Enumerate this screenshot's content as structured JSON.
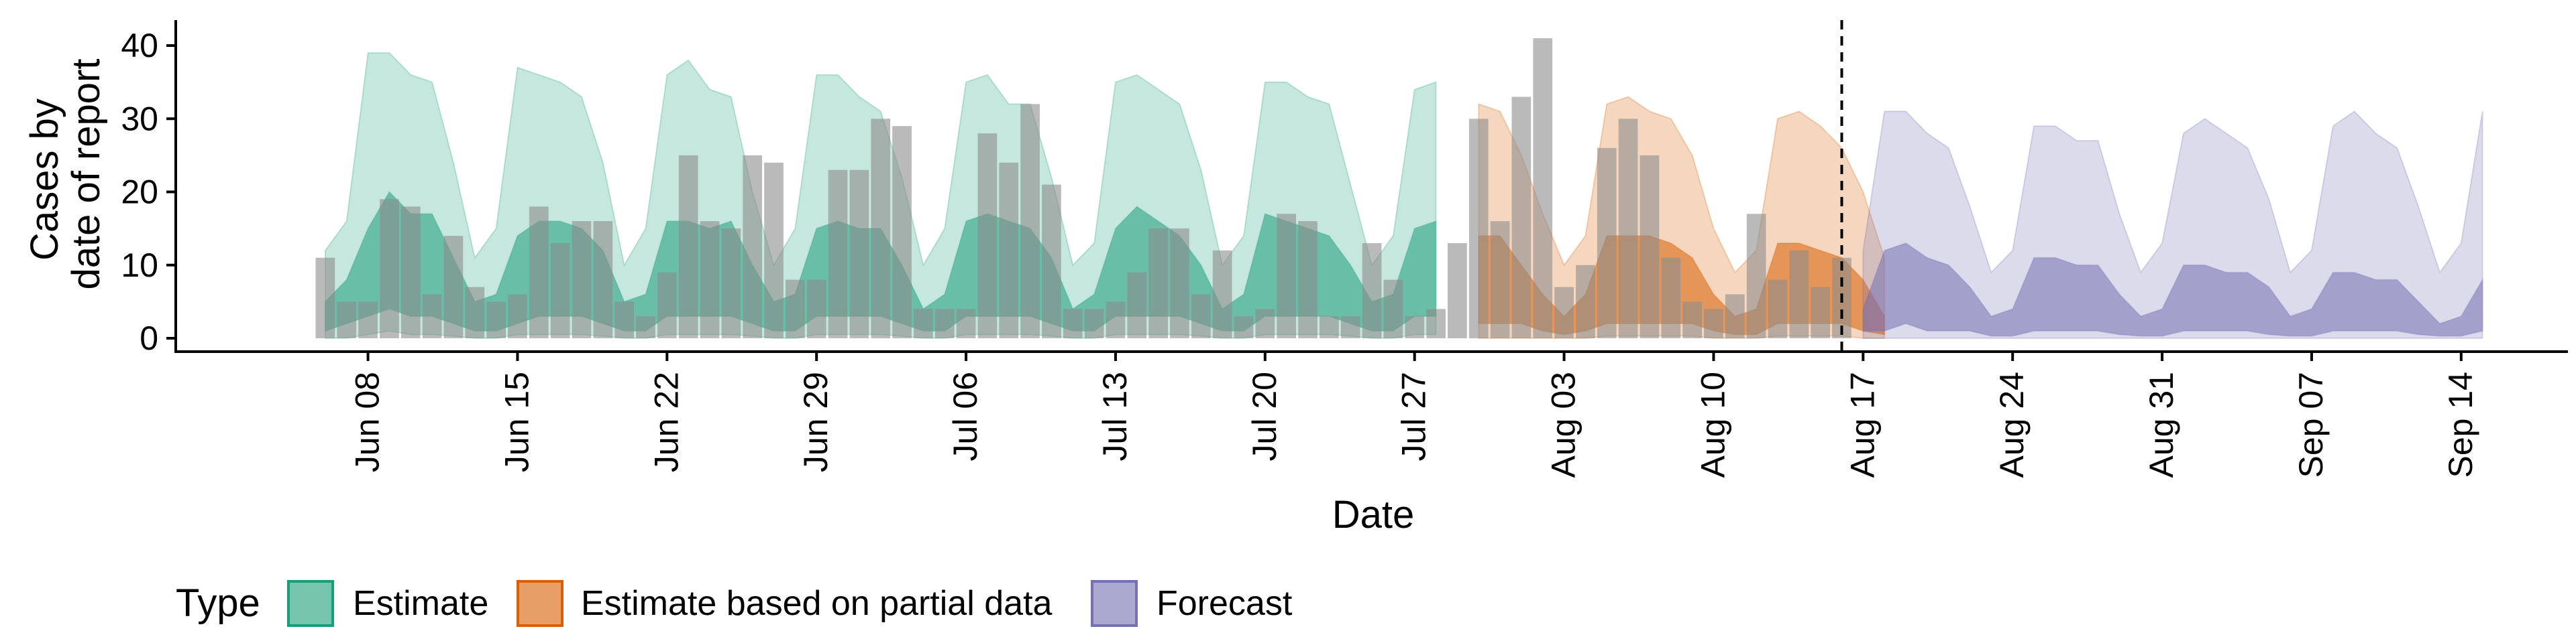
{
  "chart_data": {
    "type": "area",
    "title": "",
    "xlabel": "Date",
    "ylabel_lines": [
      "Cases by",
      "date of report"
    ],
    "xlim": [
      "2020-05-30",
      "2020-09-19"
    ],
    "ylim": [
      0,
      42
    ],
    "y_ticks": [
      0,
      10,
      20,
      30,
      40
    ],
    "x_ticks": [
      {
        "date": "2020-06-08",
        "label": "Jun 08"
      },
      {
        "date": "2020-06-15",
        "label": "Jun 15"
      },
      {
        "date": "2020-06-22",
        "label": "Jun 22"
      },
      {
        "date": "2020-06-29",
        "label": "Jun 29"
      },
      {
        "date": "2020-07-06",
        "label": "Jul 06"
      },
      {
        "date": "2020-07-13",
        "label": "Jul 13"
      },
      {
        "date": "2020-07-20",
        "label": "Jul 20"
      },
      {
        "date": "2020-07-27",
        "label": "Jul 27"
      },
      {
        "date": "2020-08-03",
        "label": "Aug 03"
      },
      {
        "date": "2020-08-10",
        "label": "Aug 10"
      },
      {
        "date": "2020-08-17",
        "label": "Aug 17"
      },
      {
        "date": "2020-08-24",
        "label": "Aug 24"
      },
      {
        "date": "2020-08-31",
        "label": "Aug 31"
      },
      {
        "date": "2020-09-07",
        "label": "Sep 07"
      },
      {
        "date": "2020-09-14",
        "label": "Sep 14"
      }
    ],
    "grid": false,
    "vline_date": "2020-08-16",
    "legend": {
      "title": "Type",
      "position": "bottom",
      "entries": [
        {
          "label": "Estimate",
          "fill": "#1b9e77",
          "border": "#1b9e77"
        },
        {
          "label": "Estimate based on partial data",
          "fill": "#d95f02",
          "border": "#d95f02"
        },
        {
          "label": "Forecast",
          "fill": "#7570b3",
          "border": "#7570b3"
        }
      ]
    },
    "observed": {
      "color": "#8c8c8c",
      "start": "2020-06-06",
      "values": [
        11,
        5,
        5,
        19,
        18,
        6,
        14,
        7,
        5,
        6,
        18,
        13,
        16,
        16,
        5,
        3,
        9,
        25,
        16,
        15,
        25,
        24,
        8,
        8,
        23,
        23,
        30,
        29,
        4,
        4,
        4,
        28,
        24,
        32,
        21,
        4,
        4,
        5,
        9,
        15,
        15,
        6,
        12,
        3,
        4,
        17,
        16,
        3,
        3,
        13,
        8,
        3,
        4,
        13,
        30,
        16,
        33,
        41,
        7,
        10,
        26,
        30,
        25,
        11,
        5,
        4,
        6,
        17,
        8,
        12,
        7,
        11
      ]
    },
    "series": [
      {
        "name": "Estimate",
        "color": "#1b9e77",
        "start": "2020-06-06",
        "upper90": [
          12,
          16,
          39,
          39,
          36,
          35,
          24,
          11,
          15,
          37,
          36,
          35,
          33,
          24,
          10,
          15,
          36,
          38,
          34,
          33,
          20,
          10,
          15,
          36,
          36,
          33,
          31,
          22,
          10,
          15,
          35,
          36,
          32,
          32,
          22,
          10,
          13,
          35,
          36,
          34,
          32,
          23,
          10,
          14,
          35,
          35,
          33,
          32,
          21,
          10,
          14,
          34,
          35
        ],
        "upper50": [
          5,
          8,
          15,
          20,
          17,
          17,
          11,
          5,
          6,
          14,
          16,
          16,
          15,
          12,
          5,
          6,
          16,
          16,
          15,
          16,
          10,
          5,
          6,
          15,
          16,
          15,
          15,
          10,
          4,
          6,
          16,
          17,
          16,
          15,
          11,
          4,
          6,
          15,
          18,
          16,
          14,
          10,
          4,
          6,
          17,
          16,
          15,
          14,
          10,
          5,
          6,
          15,
          16
        ],
        "lower50": [
          1,
          2,
          3,
          4,
          3,
          3,
          2,
          1,
          1,
          2,
          3,
          3,
          3,
          2,
          1,
          1,
          3,
          3,
          3,
          3,
          2,
          1,
          1,
          3,
          3,
          3,
          3,
          2,
          1,
          1,
          3,
          3,
          3,
          3,
          2,
          1,
          1,
          3,
          3,
          3,
          3,
          2,
          1,
          1,
          3,
          3,
          3,
          3,
          2,
          1,
          1,
          3,
          3
        ],
        "lower90": [
          0,
          0,
          0.5,
          1,
          0.5,
          0.5,
          0.3,
          0,
          0,
          0.5,
          0.5,
          0.5,
          0.5,
          0.3,
          0,
          0,
          0.5,
          0.5,
          0.5,
          0.5,
          0.3,
          0,
          0,
          0.5,
          0.5,
          0.5,
          0.5,
          0.3,
          0,
          0,
          0.5,
          0.5,
          0.5,
          0.5,
          0.3,
          0,
          0,
          0.5,
          0.5,
          0.5,
          0.5,
          0.3,
          0,
          0,
          0.5,
          0.5,
          0.5,
          0.5,
          0.3,
          0,
          0,
          0.5,
          0.5
        ]
      },
      {
        "name": "Estimate based on partial data",
        "color": "#d95f02",
        "start": "2020-07-30",
        "upper90": [
          32,
          31,
          25,
          17,
          10,
          14,
          32,
          33,
          31,
          30,
          25,
          15,
          9,
          12,
          30,
          31,
          29,
          26,
          20,
          11
        ],
        "upper50": [
          14,
          14,
          10,
          6,
          3,
          6,
          14,
          14,
          14,
          13,
          11,
          6,
          3,
          4,
          13,
          13,
          12,
          11,
          8,
          3
        ],
        "lower50": [
          2,
          2,
          2,
          1,
          0.5,
          1,
          2,
          2,
          2,
          2,
          2,
          1,
          0.5,
          0.5,
          2,
          2,
          2,
          2,
          1,
          0.5
        ],
        "lower90": [
          0,
          0,
          0,
          0,
          0,
          0,
          0.3,
          0.3,
          0.3,
          0.3,
          0.3,
          0,
          0,
          0,
          0.3,
          0.3,
          0.3,
          0.3,
          0,
          0
        ]
      },
      {
        "name": "Forecast",
        "color": "#7570b3",
        "start": "2020-08-17",
        "upper90": [
          12,
          31,
          31,
          28,
          26,
          18,
          9,
          12,
          29,
          29,
          27,
          27,
          17,
          9,
          13,
          28,
          30,
          28,
          26,
          19,
          9,
          12,
          29,
          31,
          28,
          26,
          18,
          9,
          13,
          31
        ],
        "upper50": [
          4,
          12,
          13,
          11,
          10,
          7,
          3,
          4,
          11,
          11,
          10,
          10,
          6,
          3,
          4,
          10,
          10,
          9,
          9,
          7,
          3,
          4,
          9,
          9,
          8,
          8,
          5,
          2,
          3,
          8
        ],
        "lower50": [
          1,
          1,
          2,
          1,
          1,
          1,
          0.3,
          0.3,
          1,
          1,
          1,
          1,
          0.5,
          0.3,
          0.3,
          1,
          1,
          1,
          1,
          0.5,
          0.3,
          0.3,
          1,
          1,
          1,
          1,
          0.5,
          0.3,
          0.3,
          1
        ],
        "lower90": [
          0,
          0,
          0,
          0,
          0,
          0,
          0,
          0,
          0,
          0,
          0,
          0,
          0,
          0,
          0,
          0,
          0,
          0,
          0,
          0,
          0,
          0,
          0,
          0,
          0,
          0,
          0,
          0,
          0,
          0
        ]
      }
    ]
  }
}
